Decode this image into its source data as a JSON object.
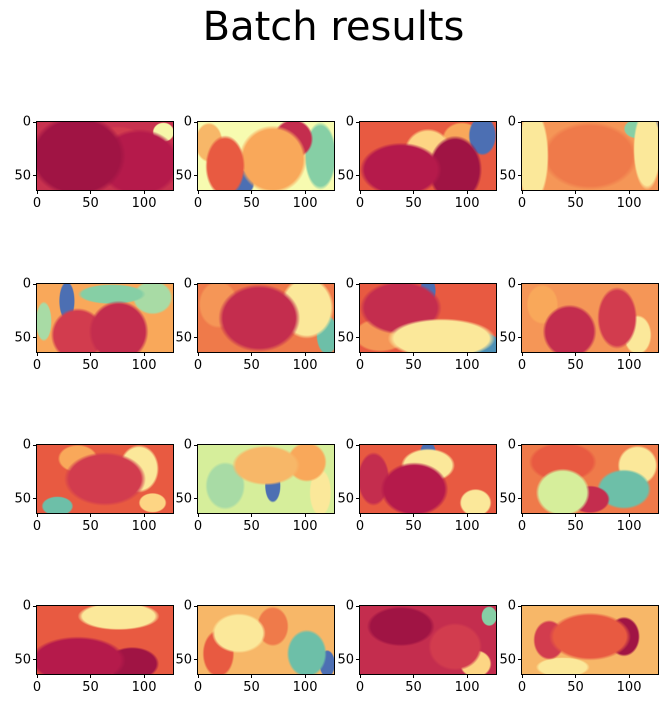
{
  "figure": {
    "title": "Batch results"
  },
  "chart_data": {
    "type": "heatmap",
    "title": "Batch results",
    "layout": {
      "rows": 4,
      "cols": 4
    },
    "colormap": "Spectral",
    "xlim": [
      0,
      127
    ],
    "ylim": [
      63,
      0
    ],
    "xticks": [
      0,
      50,
      100
    ],
    "yticks": [
      0,
      50
    ],
    "panels": [
      {
        "base": "#c8324f",
        "blobs": [
          [
            0.3,
            0.5,
            0.35,
            0.6,
            "#a01444"
          ],
          [
            0.75,
            0.6,
            0.3,
            0.5,
            "#b51a4b"
          ],
          [
            0.93,
            0.15,
            0.08,
            0.15,
            "#f6f6aa"
          ],
          [
            0.6,
            0.35,
            0.2,
            0.3,
            "#d23c4e"
          ]
        ]
      },
      {
        "base": "#f7fbb0",
        "blobs": [
          [
            0.2,
            0.65,
            0.15,
            0.45,
            "#e85a41"
          ],
          [
            0.55,
            0.55,
            0.25,
            0.5,
            "#f9a85a"
          ],
          [
            0.7,
            0.25,
            0.15,
            0.3,
            "#c42d4e"
          ],
          [
            0.9,
            0.5,
            0.12,
            0.5,
            "#86cfa5"
          ],
          [
            0.3,
            0.9,
            0.12,
            0.2,
            "#4c6fb3"
          ],
          [
            0.08,
            0.3,
            0.1,
            0.3,
            "#f7b768"
          ]
        ]
      },
      {
        "base": "#e85a41",
        "blobs": [
          [
            0.3,
            0.7,
            0.3,
            0.4,
            "#b51a4b"
          ],
          [
            0.7,
            0.7,
            0.2,
            0.5,
            "#a01444"
          ],
          [
            0.5,
            0.45,
            0.18,
            0.35,
            "#fdd584"
          ],
          [
            0.9,
            0.2,
            0.1,
            0.3,
            "#4c6fb3"
          ],
          [
            0.75,
            0.25,
            0.15,
            0.25,
            "#f9a85a"
          ]
        ]
      },
      {
        "base": "#f59657",
        "blobs": [
          [
            0.08,
            0.5,
            0.12,
            0.7,
            "#fbe89a"
          ],
          [
            0.92,
            0.4,
            0.1,
            0.6,
            "#fbe89a"
          ],
          [
            0.5,
            0.5,
            0.35,
            0.5,
            "#ef7a4a"
          ],
          [
            0.85,
            0.1,
            0.1,
            0.15,
            "#86cfa5"
          ],
          [
            0.95,
            0.05,
            0.05,
            0.1,
            "#4c6fb3"
          ]
        ]
      },
      {
        "base": "#f9a85a",
        "blobs": [
          [
            0.6,
            0.7,
            0.22,
            0.45,
            "#c42d4e"
          ],
          [
            0.3,
            0.75,
            0.2,
            0.4,
            "#d23c4e"
          ],
          [
            0.22,
            0.25,
            0.06,
            0.3,
            "#4c6fb3"
          ],
          [
            0.55,
            0.15,
            0.25,
            0.15,
            "#86cfa5"
          ],
          [
            0.85,
            0.2,
            0.15,
            0.25,
            "#a8dba5"
          ],
          [
            0.05,
            0.55,
            0.06,
            0.3,
            "#a8dba5"
          ]
        ]
      },
      {
        "base": "#ef7a4a",
        "blobs": [
          [
            0.45,
            0.5,
            0.3,
            0.5,
            "#c42d4e"
          ],
          [
            0.8,
            0.35,
            0.2,
            0.45,
            "#fbe89a"
          ],
          [
            0.95,
            0.75,
            0.08,
            0.3,
            "#6dbfa8"
          ],
          [
            0.15,
            0.3,
            0.15,
            0.35,
            "#f59657"
          ]
        ]
      },
      {
        "base": "#e85a41",
        "blobs": [
          [
            0.6,
            0.8,
            0.4,
            0.3,
            "#fbe89a"
          ],
          [
            0.85,
            0.9,
            0.2,
            0.2,
            "#4c90b6"
          ],
          [
            0.45,
            0.9,
            0.15,
            0.15,
            "#86cfa5"
          ],
          [
            0.3,
            0.35,
            0.3,
            0.4,
            "#c42d4e"
          ],
          [
            0.5,
            0.1,
            0.06,
            0.2,
            "#4c6fb3"
          ],
          [
            0.15,
            0.75,
            0.2,
            0.25,
            "#f59657"
          ]
        ]
      },
      {
        "base": "#f59657",
        "blobs": [
          [
            0.35,
            0.7,
            0.2,
            0.4,
            "#c42d4e"
          ],
          [
            0.7,
            0.5,
            0.15,
            0.45,
            "#d23c4e"
          ],
          [
            0.15,
            0.3,
            0.12,
            0.3,
            "#f9a85a"
          ],
          [
            0.85,
            0.75,
            0.1,
            0.3,
            "#fbe89a"
          ]
        ]
      },
      {
        "base": "#e85a41",
        "blobs": [
          [
            0.5,
            0.5,
            0.3,
            0.4,
            "#d23c4e"
          ],
          [
            0.75,
            0.35,
            0.15,
            0.35,
            "#fbe89a"
          ],
          [
            0.15,
            0.9,
            0.12,
            0.15,
            "#6dbfa8"
          ],
          [
            0.85,
            0.85,
            0.1,
            0.15,
            "#fdd584"
          ],
          [
            0.3,
            0.2,
            0.15,
            0.2,
            "#f9a85a"
          ]
        ]
      },
      {
        "base": "#d6ee9b",
        "blobs": [
          [
            0.5,
            0.3,
            0.25,
            0.3,
            "#f7b768"
          ],
          [
            0.8,
            0.25,
            0.15,
            0.3,
            "#f9a85a"
          ],
          [
            0.55,
            0.6,
            0.06,
            0.25,
            "#4c6fb3"
          ],
          [
            0.9,
            0.7,
            0.08,
            0.35,
            "#fbe89a"
          ],
          [
            0.2,
            0.6,
            0.15,
            0.35,
            "#a8dba5"
          ]
        ]
      },
      {
        "base": "#e85a41",
        "blobs": [
          [
            0.4,
            0.65,
            0.25,
            0.4,
            "#b51a4b"
          ],
          [
            0.5,
            0.3,
            0.2,
            0.25,
            "#fbe89a"
          ],
          [
            0.5,
            0.1,
            0.06,
            0.15,
            "#4c6fb3"
          ],
          [
            0.85,
            0.85,
            0.12,
            0.2,
            "#fbe89a"
          ],
          [
            0.1,
            0.5,
            0.12,
            0.4,
            "#c42d4e"
          ]
        ]
      },
      {
        "base": "#ef7a4a",
        "blobs": [
          [
            0.3,
            0.7,
            0.2,
            0.35,
            "#d6ee9b"
          ],
          [
            0.5,
            0.8,
            0.15,
            0.2,
            "#c42d4e"
          ],
          [
            0.75,
            0.65,
            0.2,
            0.3,
            "#6dbfa8"
          ],
          [
            0.3,
            0.25,
            0.25,
            0.3,
            "#e85a41"
          ],
          [
            0.85,
            0.3,
            0.15,
            0.3,
            "#fbe89a"
          ]
        ]
      },
      {
        "base": "#e85a41",
        "blobs": [
          [
            0.3,
            0.8,
            0.35,
            0.35,
            "#b51a4b"
          ],
          [
            0.7,
            0.85,
            0.2,
            0.25,
            "#a01444"
          ],
          [
            0.6,
            0.15,
            0.3,
            0.2,
            "#fbe89a"
          ],
          [
            0.66,
            0.02,
            0.04,
            0.08,
            "#4c6fb3"
          ]
        ]
      },
      {
        "base": "#f7b768",
        "blobs": [
          [
            0.3,
            0.4,
            0.2,
            0.3,
            "#fbe89a"
          ],
          [
            0.55,
            0.3,
            0.12,
            0.3,
            "#ef7a4a"
          ],
          [
            0.8,
            0.7,
            0.15,
            0.35,
            "#6dbfa8"
          ],
          [
            0.95,
            0.85,
            0.06,
            0.2,
            "#4c6fb3"
          ],
          [
            0.15,
            0.7,
            0.12,
            0.35,
            "#e85a41"
          ]
        ]
      },
      {
        "base": "#c42d4e",
        "blobs": [
          [
            0.3,
            0.3,
            0.25,
            0.3,
            "#a01444"
          ],
          [
            0.7,
            0.6,
            0.2,
            0.35,
            "#d23c4e"
          ],
          [
            0.95,
            0.15,
            0.06,
            0.15,
            "#86cfa5"
          ],
          [
            0.85,
            0.85,
            0.12,
            0.2,
            "#fdd584"
          ]
        ]
      },
      {
        "base": "#f7b768",
        "blobs": [
          [
            0.5,
            0.45,
            0.3,
            0.35,
            "#e85a41"
          ],
          [
            0.75,
            0.45,
            0.12,
            0.3,
            "#a01444"
          ],
          [
            0.2,
            0.5,
            0.12,
            0.3,
            "#d23c4e"
          ],
          [
            0.3,
            0.9,
            0.2,
            0.15,
            "#fbe89a"
          ]
        ]
      }
    ]
  }
}
